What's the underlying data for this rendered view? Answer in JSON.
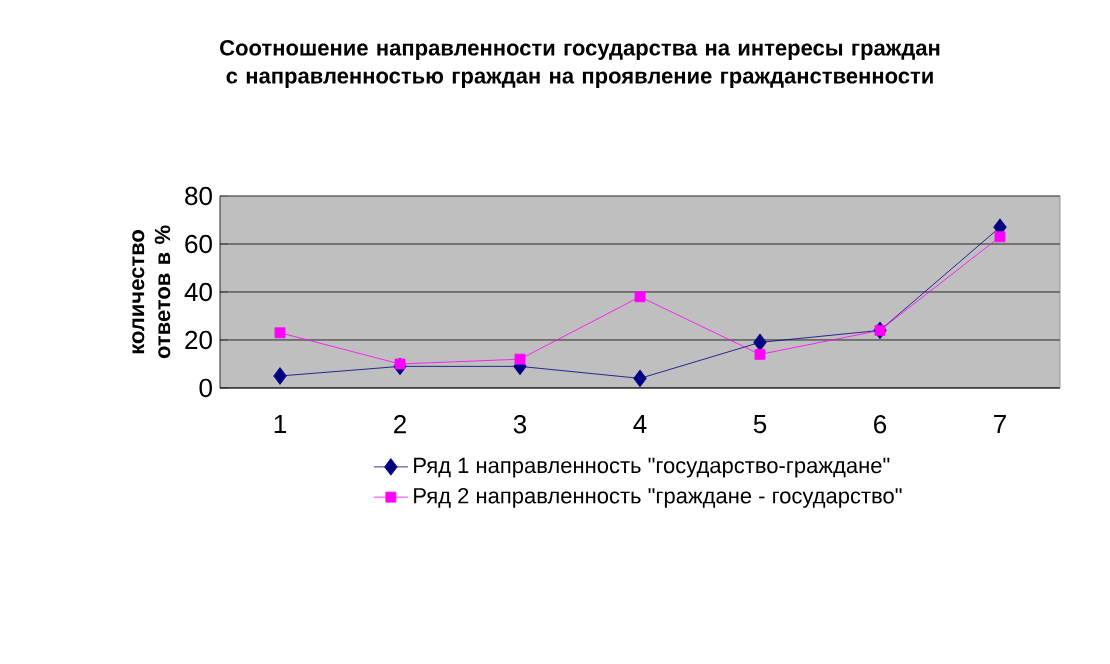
{
  "chart_data": {
    "type": "line",
    "title": "Соотношение направленности государства на интересы граждан с направленностью граждан на проявление гражданственности",
    "ylabel": "количество ответов в %",
    "categories": [
      "1",
      "2",
      "3",
      "4",
      "5",
      "6",
      "7"
    ],
    "series": [
      {
        "name": "Ряд 1 направленность \"государство-граждане\"",
        "color": "#000080",
        "marker": "diamond",
        "values": [
          5,
          9,
          9,
          4,
          19,
          24,
          67
        ]
      },
      {
        "name": "Ряд 2 направленность \"граждане - государство\"",
        "color": "#ff00ff",
        "marker": "square",
        "values": [
          23,
          10,
          12,
          38,
          14,
          24,
          63
        ]
      }
    ],
    "ylim": [
      0,
      80
    ],
    "yticks": [
      0,
      20,
      40,
      60,
      80
    ],
    "grid": "y",
    "legend": "bottom"
  }
}
